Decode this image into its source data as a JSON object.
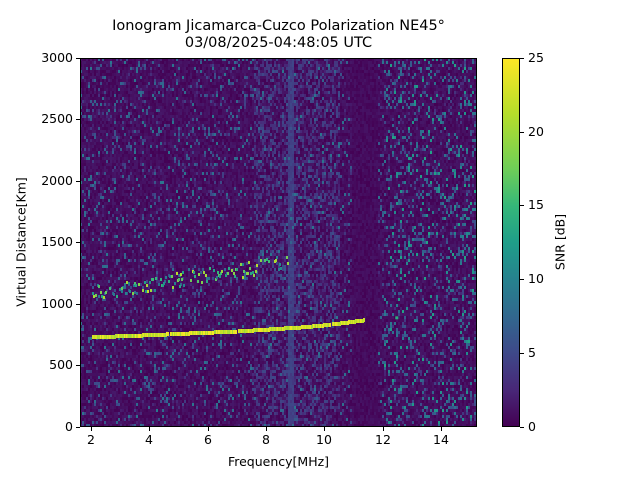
{
  "chart_data": {
    "type": "heatmap",
    "title": "Ionogram Jicamarca-Cuzco Polarization NE45°",
    "subtitle": "03/08/2025-04:48:05 UTC",
    "xlabel": "Frequency[MHz]",
    "ylabel": "Virtual Distance[Km]",
    "colorbar_label": "SNR [dB]",
    "xlim": [
      1.6,
      15.2
    ],
    "ylim": [
      0,
      3000
    ],
    "clim": [
      0,
      25
    ],
    "colormap": "viridis",
    "x_ticks": [
      2,
      4,
      6,
      8,
      10,
      12,
      14
    ],
    "y_ticks": [
      0,
      500,
      1000,
      1500,
      2000,
      2500,
      3000
    ],
    "colorbar_ticks": [
      0,
      5,
      10,
      15,
      20,
      25
    ],
    "grid": false,
    "traces": [
      {
        "name": "primary echo (strong, yellow)",
        "points": [
          [
            2.0,
            740
          ],
          [
            3.0,
            745
          ],
          [
            4.0,
            755
          ],
          [
            5.0,
            765
          ],
          [
            6.0,
            775
          ],
          [
            7.0,
            785
          ],
          [
            8.0,
            800
          ],
          [
            9.0,
            815
          ],
          [
            10.0,
            835
          ],
          [
            10.5,
            850
          ],
          [
            11.0,
            865
          ],
          [
            11.3,
            875
          ]
        ],
        "snr_db": 25
      },
      {
        "name": "second hop echo (moderate, green)",
        "points": [
          [
            2.0,
            1100
          ],
          [
            3.0,
            1120
          ],
          [
            4.0,
            1160
          ],
          [
            5.0,
            1200
          ],
          [
            6.0,
            1240
          ],
          [
            7.0,
            1270
          ],
          [
            8.0,
            1310
          ],
          [
            8.7,
            1350
          ]
        ],
        "snr_db": 15
      }
    ],
    "features": [
      {
        "name": "vertical interference band",
        "freq_mhz": 8.8
      },
      {
        "name": "quiet band",
        "freq_mhz_range": [
          10.9,
          11.8
        ]
      },
      {
        "name": "weak echo near 12.4 MHz",
        "freq_mhz": 12.4,
        "distance_km": 900
      }
    ]
  },
  "labels": {
    "title_line1": "Ionogram Jicamarca-Cuzco Polarization NE45°",
    "title_line2": "03/08/2025-04:48:05 UTC",
    "xlabel": "Frequency[MHz]",
    "ylabel": "Virtual Distance[Km]",
    "clabel": "SNR [dB]",
    "xticks": [
      "2",
      "4",
      "6",
      "8",
      "10",
      "12",
      "14"
    ],
    "yticks": [
      "0",
      "500",
      "1000",
      "1500",
      "2000",
      "2500",
      "3000"
    ],
    "cticks": [
      "0",
      "5",
      "10",
      "15",
      "20",
      "25"
    ]
  }
}
